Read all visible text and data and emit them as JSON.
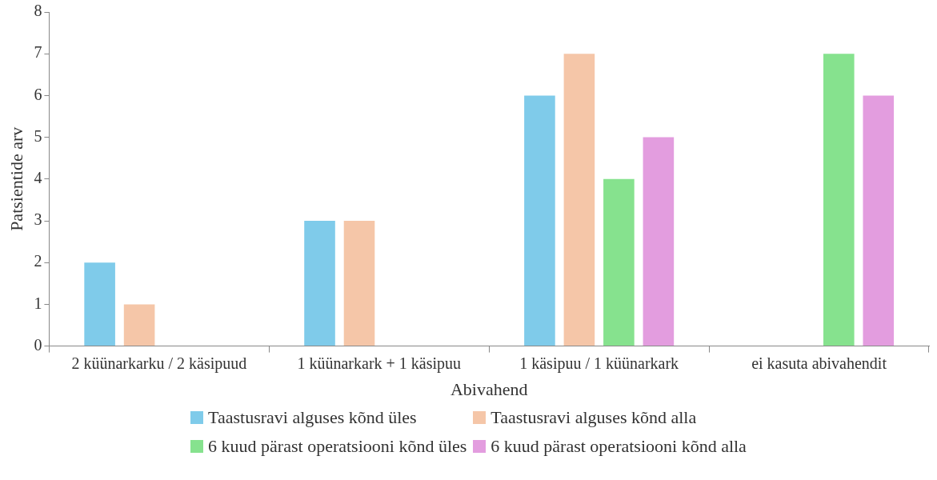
{
  "chart_data": {
    "type": "bar",
    "xlabel": "Abivahend",
    "ylabel": "Patsientide arv",
    "categories": [
      "2 küünarkarku / 2 käsipuud",
      "1 küünarkark + 1 käsipuu",
      "1 käsipuu / 1 küünarkark",
      "ei kasuta abivahendit"
    ],
    "ylim": [
      0,
      8
    ],
    "yticks": [
      0,
      1,
      2,
      3,
      4,
      5,
      6,
      7,
      8
    ],
    "grid": false,
    "legend": "bottom",
    "series": [
      {
        "name": "Taastusravi alguses kõnd üles",
        "color": "#7fcbea",
        "values": [
          2,
          3,
          6,
          0
        ]
      },
      {
        "name": "Taastusravi alguses kõnd alla",
        "color": "#f5c6a8",
        "values": [
          1,
          3,
          7,
          0
        ]
      },
      {
        "name": "6 kuud pärast operatsiooni kõnd üles",
        "color": "#86e28e",
        "values": [
          0,
          0,
          4,
          7
        ]
      },
      {
        "name": "6 kuud pärast operatsiooni kõnd alla",
        "color": "#e39ddf",
        "values": [
          0,
          0,
          5,
          6
        ]
      }
    ]
  }
}
